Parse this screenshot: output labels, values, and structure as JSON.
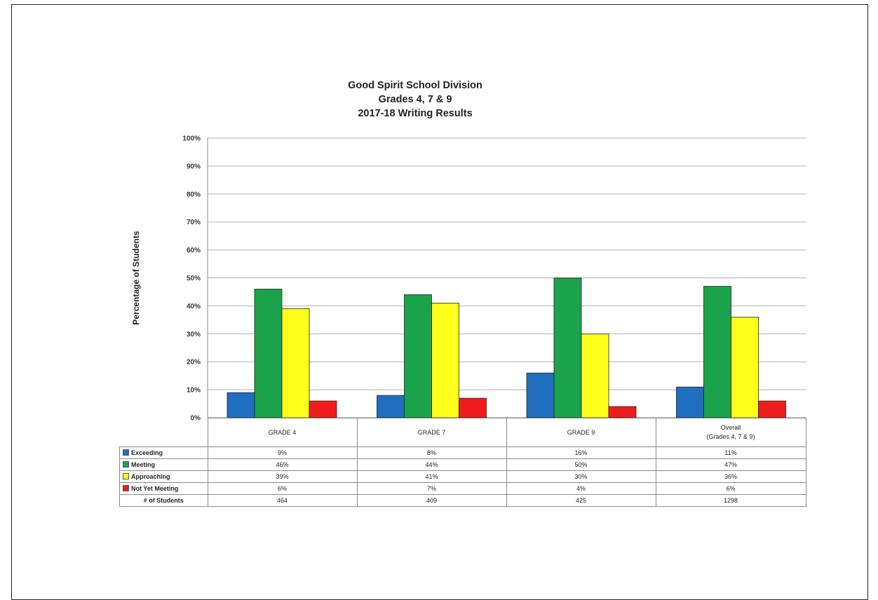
{
  "chart_data": {
    "type": "bar",
    "title": [
      "Good Spirit School Division",
      "Grades 4, 7 & 9",
      "2017-18 Writing Results"
    ],
    "ylabel": "Percentage of Students",
    "xlabel": "",
    "ylim": [
      0,
      100
    ],
    "y_ticks": [
      "0%",
      "10%",
      "20%",
      "30%",
      "40%",
      "50%",
      "60%",
      "70%",
      "80%",
      "90%",
      "100%"
    ],
    "grid": true,
    "legend": "table-rows",
    "categories": [
      "GRADE 4",
      "GRADE 7",
      "GRADE 9",
      "Overall\n(Grades 4, 7 & 9)"
    ],
    "series": [
      {
        "name": "Exceeding",
        "color": "#1f6ebf",
        "values": [
          9,
          8,
          16,
          11
        ],
        "labels": [
          "9%",
          "8%",
          "16%",
          "11%"
        ]
      },
      {
        "name": "Meeting",
        "color": "#1aa34a",
        "values": [
          46,
          44,
          50,
          47
        ],
        "labels": [
          "46%",
          "44%",
          "50%",
          "47%"
        ]
      },
      {
        "name": "Approaching",
        "color": "#ffff1a",
        "values": [
          39,
          41,
          30,
          36
        ],
        "labels": [
          "39%",
          "41%",
          "30%",
          "36%"
        ]
      },
      {
        "name": "Not Yet Meeting",
        "color": "#ee1c1c",
        "values": [
          6,
          7,
          4,
          6
        ],
        "labels": [
          "6%",
          "7%",
          "4%",
          "6%"
        ]
      }
    ],
    "students": {
      "label": "# of Students",
      "values": [
        "464",
        "409",
        "425",
        "1298"
      ]
    }
  }
}
